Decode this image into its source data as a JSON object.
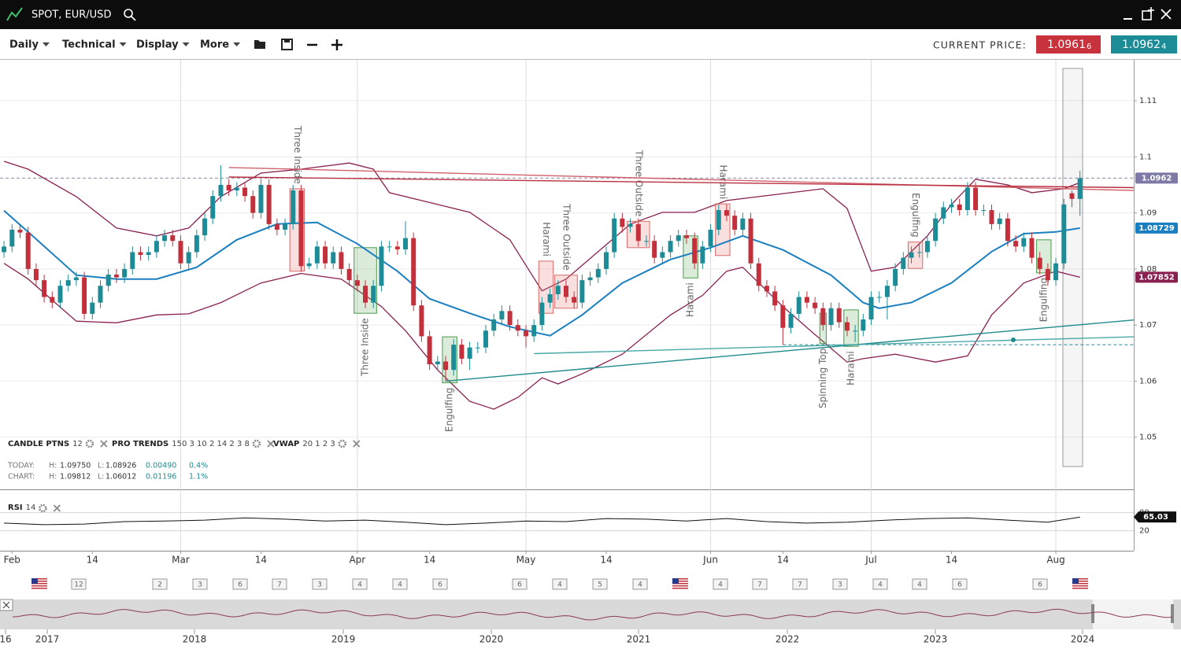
{
  "header": {
    "title": "SPOT, EUR/USD"
  },
  "toolbar": {
    "menus": [
      "Daily",
      "Technical",
      "Display",
      "More"
    ],
    "current_price_label": "CURRENT PRICE:",
    "bid": "1.0961",
    "bid_pip": "6",
    "ask": "1.0962",
    "ask_pip": "4"
  },
  "chart": {
    "type": "candlestick",
    "xlim": [
      -0.5,
      140.7
    ],
    "ylim": [
      1.0407,
      1.1173
    ],
    "yticks": [
      1.05,
      1.06,
      1.07,
      1.08,
      1.09,
      1.1,
      1.11
    ],
    "xticks": [
      {
        "value": 1,
        "label": "Feb"
      },
      {
        "value": 11,
        "label": "14"
      },
      {
        "value": 22,
        "label": "Mar"
      },
      {
        "value": 32,
        "label": "14"
      },
      {
        "value": 44,
        "label": "Apr"
      },
      {
        "value": 53,
        "label": "14"
      },
      {
        "value": 65,
        "label": "May"
      },
      {
        "value": 75,
        "label": "14"
      },
      {
        "value": 88,
        "label": "Jun"
      },
      {
        "value": 97,
        "label": "14"
      },
      {
        "value": 108,
        "label": "Jul"
      },
      {
        "value": 118,
        "label": "14"
      },
      {
        "value": 131,
        "label": "Aug"
      }
    ],
    "xgrid": [
      22,
      44,
      65,
      88,
      108,
      131
    ],
    "colors": {
      "up": "#1e8c96",
      "down": "#c3303c",
      "last_price": "#7d7aa6"
    },
    "candles": [
      [
        1.083,
        1.085,
        1.082,
        1.084
      ],
      [
        1.084,
        1.088,
        1.083,
        1.087
      ],
      [
        1.087,
        1.088,
        1.0855,
        1.0865
      ],
      [
        1.0865,
        1.0875,
        1.079,
        1.08
      ],
      [
        1.08,
        1.081,
        1.077,
        1.078
      ],
      [
        1.078,
        1.079,
        1.074,
        1.075
      ],
      [
        1.075,
        1.076,
        1.073,
        1.074
      ],
      [
        1.074,
        1.078,
        1.073,
        1.077
      ],
      [
        1.077,
        1.079,
        1.076,
        1.078
      ],
      [
        1.078,
        1.0795,
        1.077,
        1.0785
      ],
      [
        1.0785,
        1.0795,
        1.071,
        1.072
      ],
      [
        1.072,
        1.075,
        1.071,
        1.074
      ],
      [
        1.074,
        1.078,
        1.073,
        1.077
      ],
      [
        1.077,
        1.08,
        1.076,
        1.079
      ],
      [
        1.079,
        1.08,
        1.0775,
        1.0785
      ],
      [
        1.0785,
        1.081,
        1.0775,
        1.08
      ],
      [
        1.08,
        1.084,
        1.079,
        1.083
      ],
      [
        1.083,
        1.084,
        1.0815,
        1.0825
      ],
      [
        1.0825,
        1.084,
        1.0815,
        1.083
      ],
      [
        1.083,
        1.086,
        1.082,
        1.085
      ],
      [
        1.085,
        1.087,
        1.084,
        1.086
      ],
      [
        1.086,
        1.087,
        1.084,
        1.085
      ],
      [
        1.085,
        1.086,
        1.08,
        1.081
      ],
      [
        1.081,
        1.084,
        1.08,
        1.083
      ],
      [
        1.083,
        1.087,
        1.082,
        1.086
      ],
      [
        1.086,
        1.09,
        1.085,
        1.089
      ],
      [
        1.089,
        1.094,
        1.088,
        1.093
      ],
      [
        1.093,
        1.0985,
        1.092,
        1.095
      ],
      [
        1.095,
        1.096,
        1.093,
        1.094
      ],
      [
        1.094,
        1.0955,
        1.093,
        1.0945
      ],
      [
        1.0945,
        1.0955,
        1.092,
        1.093
      ],
      [
        1.093,
        1.094,
        1.089,
        1.09
      ],
      [
        1.09,
        1.096,
        1.089,
        1.095
      ],
      [
        1.095,
        1.096,
        1.087,
        1.088
      ],
      [
        1.088,
        1.089,
        1.086,
        1.087
      ],
      [
        1.087,
        1.089,
        1.086,
        1.088
      ],
      [
        1.088,
        1.095,
        1.087,
        1.094
      ],
      [
        1.094,
        1.095,
        1.0795,
        1.0805
      ],
      [
        1.0805,
        1.082,
        1.08,
        1.081
      ],
      [
        1.081,
        1.085,
        1.08,
        1.084
      ],
      [
        1.084,
        1.085,
        1.08,
        1.081
      ],
      [
        1.081,
        1.084,
        1.08,
        1.083
      ],
      [
        1.083,
        1.084,
        1.079,
        1.08
      ],
      [
        1.08,
        1.081,
        1.077,
        1.078
      ],
      [
        1.078,
        1.079,
        1.076,
        1.077
      ],
      [
        1.077,
        1.078,
        1.073,
        1.074
      ],
      [
        1.074,
        1.078,
        1.073,
        1.077
      ],
      [
        1.077,
        1.085,
        1.076,
        1.084
      ],
      [
        1.084,
        1.085,
        1.083,
        1.084
      ],
      [
        1.084,
        1.085,
        1.0825,
        1.0835
      ],
      [
        1.0835,
        1.0885,
        1.0825,
        1.0855
      ],
      [
        1.0855,
        1.0865,
        1.0725,
        1.0735
      ],
      [
        1.0735,
        1.0745,
        1.067,
        1.068
      ],
      [
        1.068,
        1.069,
        1.062,
        1.063
      ],
      [
        1.063,
        1.0645,
        1.062,
        1.0635
      ],
      [
        1.0635,
        1.0645,
        1.06,
        1.062
      ],
      [
        1.062,
        1.0675,
        1.061,
        1.0665
      ],
      [
        1.0665,
        1.0675,
        1.063,
        1.064
      ],
      [
        1.064,
        1.067,
        1.062,
        1.066
      ],
      [
        1.066,
        1.067,
        1.065,
        1.066
      ],
      [
        1.066,
        1.07,
        1.065,
        1.069
      ],
      [
        1.069,
        1.072,
        1.068,
        1.071
      ],
      [
        1.071,
        1.0735,
        1.07,
        1.0725
      ],
      [
        1.0725,
        1.0735,
        1.069,
        1.07
      ],
      [
        1.07,
        1.071,
        1.068,
        1.069
      ],
      [
        1.069,
        1.07,
        1.066,
        1.068
      ],
      [
        1.068,
        1.071,
        1.067,
        1.07
      ],
      [
        1.07,
        1.075,
        1.069,
        1.074
      ],
      [
        1.074,
        1.0765,
        1.073,
        1.0755
      ],
      [
        1.0755,
        1.078,
        1.0745,
        1.077
      ],
      [
        1.077,
        1.078,
        1.074,
        1.075
      ],
      [
        1.075,
        1.076,
        1.073,
        1.074
      ],
      [
        1.074,
        1.079,
        1.073,
        1.078
      ],
      [
        1.078,
        1.0795,
        1.077,
        1.0785
      ],
      [
        1.0785,
        1.081,
        1.0775,
        1.08
      ],
      [
        1.08,
        1.084,
        1.079,
        1.083
      ],
      [
        1.083,
        1.09,
        1.082,
        1.089
      ],
      [
        1.089,
        1.09,
        1.0865,
        1.0875
      ],
      [
        1.0875,
        1.089,
        1.0865,
        1.088
      ],
      [
        1.088,
        1.089,
        1.084,
        1.085
      ],
      [
        1.085,
        1.086,
        1.084,
        1.085
      ],
      [
        1.085,
        1.086,
        1.081,
        1.082
      ],
      [
        1.082,
        1.084,
        1.081,
        1.083
      ],
      [
        1.083,
        1.086,
        1.082,
        1.085
      ],
      [
        1.085,
        1.087,
        1.084,
        1.086
      ],
      [
        1.086,
        1.087,
        1.0845,
        1.0855
      ],
      [
        1.0855,
        1.0865,
        1.08,
        1.081
      ],
      [
        1.081,
        1.085,
        1.08,
        1.084
      ],
      [
        1.084,
        1.088,
        1.083,
        1.087
      ],
      [
        1.087,
        1.0915,
        1.086,
        1.0905
      ],
      [
        1.0905,
        1.0915,
        1.0885,
        1.0895
      ],
      [
        1.0895,
        1.0905,
        1.086,
        1.087
      ],
      [
        1.087,
        1.09,
        1.086,
        1.089
      ],
      [
        1.089,
        1.09,
        1.08,
        1.081
      ],
      [
        1.081,
        1.082,
        1.076,
        1.077
      ],
      [
        1.077,
        1.078,
        1.075,
        1.076
      ],
      [
        1.076,
        1.077,
        1.0725,
        1.0735
      ],
      [
        1.0735,
        1.0745,
        1.0665,
        1.0695
      ],
      [
        1.0695,
        1.073,
        1.0685,
        1.072
      ],
      [
        1.072,
        1.076,
        1.071,
        1.075
      ],
      [
        1.075,
        1.076,
        1.073,
        1.074
      ],
      [
        1.074,
        1.075,
        1.072,
        1.073
      ],
      [
        1.073,
        1.074,
        1.069,
        1.07
      ],
      [
        1.07,
        1.074,
        1.069,
        1.073
      ],
      [
        1.073,
        1.074,
        1.0695,
        1.0705
      ],
      [
        1.0705,
        1.0715,
        1.068,
        1.069
      ],
      [
        1.069,
        1.07,
        1.067,
        1.069
      ],
      [
        1.069,
        1.072,
        1.068,
        1.071
      ],
      [
        1.071,
        1.076,
        1.07,
        1.075
      ],
      [
        1.075,
        1.076,
        1.074,
        1.075
      ],
      [
        1.075,
        1.078,
        1.071,
        1.077
      ],
      [
        1.077,
        1.081,
        1.076,
        1.08
      ],
      [
        1.08,
        1.083,
        1.079,
        1.082
      ],
      [
        1.082,
        1.084,
        1.081,
        1.083
      ],
      [
        1.083,
        1.0845,
        1.082,
        1.083
      ],
      [
        1.083,
        1.086,
        1.082,
        1.085
      ],
      [
        1.085,
        1.09,
        1.084,
        1.089
      ],
      [
        1.089,
        1.092,
        1.088,
        1.091
      ],
      [
        1.091,
        1.0925,
        1.09,
        1.0915
      ],
      [
        1.0915,
        1.0925,
        1.0895,
        1.0905
      ],
      [
        1.0905,
        1.0955,
        1.0895,
        1.0945
      ],
      [
        1.0945,
        1.0955,
        1.0895,
        1.0905
      ],
      [
        1.0905,
        1.0915,
        1.0895,
        1.0905
      ],
      [
        1.0905,
        1.0915,
        1.087,
        1.088
      ],
      [
        1.088,
        1.09,
        1.087,
        1.089
      ],
      [
        1.089,
        1.09,
        1.084,
        1.085
      ],
      [
        1.085,
        1.086,
        1.083,
        1.084
      ],
      [
        1.084,
        1.0865,
        1.083,
        1.0855
      ],
      [
        1.0855,
        1.0865,
        1.081,
        1.082
      ],
      [
        1.082,
        1.083,
        1.079,
        1.08
      ],
      [
        1.08,
        1.081,
        1.077,
        1.078
      ],
      [
        1.078,
        1.082,
        1.077,
        1.081
      ],
      [
        1.081,
        1.0925,
        1.08,
        1.0915
      ],
      [
        1.0935,
        1.094,
        1.091,
        1.0925
      ],
      [
        1.0925,
        1.0975,
        1.0895,
        1.0962
      ]
    ],
    "middle": {
      "color": "#1a7fc0",
      "x": [
        0,
        3,
        9,
        14,
        19,
        24,
        29,
        34,
        39,
        44,
        49,
        53,
        58,
        63,
        68,
        72,
        77,
        83,
        88,
        92,
        97,
        103,
        107,
        109,
        113,
        118,
        123,
        127,
        131,
        134
      ],
      "values": [
        1.0904,
        1.0866,
        1.0789,
        1.0782,
        1.0782,
        1.0803,
        1.0852,
        1.088,
        1.0883,
        1.0845,
        1.0796,
        1.0747,
        1.0721,
        1.0697,
        1.0681,
        1.0718,
        1.0775,
        1.0817,
        1.0838,
        1.0859,
        1.0834,
        1.0789,
        1.074,
        1.073,
        1.074,
        1.0775,
        1.0831,
        1.0863,
        1.0866,
        1.08729
      ]
    },
    "upper": {
      "color": "#8a2050",
      "x": [
        0,
        3,
        9,
        14,
        19,
        23,
        27,
        32,
        37,
        43,
        46,
        48,
        52,
        58,
        63,
        67,
        70,
        74,
        78,
        82,
        86,
        90,
        94,
        98,
        102,
        105,
        108,
        111,
        115,
        118,
        121,
        125,
        128,
        132,
        134
      ],
      "values": [
        1.0992,
        1.0978,
        1.0929,
        1.0873,
        1.0859,
        1.0873,
        1.0929,
        1.0971,
        1.0978,
        1.0989,
        1.0978,
        1.0936,
        1.0922,
        1.0901,
        1.0852,
        1.0761,
        1.0782,
        1.0831,
        1.088,
        1.0901,
        1.0901,
        1.0922,
        1.0929,
        1.0936,
        1.0943,
        1.0908,
        1.0796,
        1.0803,
        1.0859,
        1.0915,
        1.096,
        1.095,
        1.0936,
        1.0943,
        1.0954
      ]
    },
    "lower": {
      "color": "#8a2050",
      "x": [
        0,
        3,
        9,
        14,
        19,
        23,
        27,
        32,
        37,
        42,
        47,
        50,
        54,
        58,
        61,
        64,
        67,
        69,
        72,
        77,
        83,
        87,
        90,
        92,
        97,
        101,
        105,
        107,
        111,
        116,
        120,
        123,
        127,
        131,
        134
      ],
      "values": [
        1.081,
        1.0782,
        1.0707,
        1.0704,
        1.0718,
        1.072,
        1.074,
        1.0775,
        1.0792,
        1.0782,
        1.0733,
        1.069,
        1.062,
        1.0564,
        1.055,
        1.0571,
        1.0606,
        1.0595,
        1.0613,
        1.0648,
        1.0718,
        1.0753,
        1.0796,
        1.0803,
        1.0733,
        1.0683,
        1.0634,
        1.064,
        1.0648,
        1.0634,
        1.0645,
        1.0718,
        1.0775,
        1.0796,
        1.07852
      ]
    },
    "trend_lines": [
      {
        "color": "#d0606a",
        "x": [
          28,
          140.7
        ],
        "values": [
          1.0981,
          1.094
        ]
      },
      {
        "color": "#b83040",
        "x": [
          28,
          140.7
        ],
        "values": [
          1.0964,
          1.0945
        ]
      },
      {
        "color": "#1e8a8a",
        "x": [
          55,
          140.7
        ],
        "values": [
          1.06,
          1.0709
        ]
      },
      {
        "color": "#4aa8a8",
        "x": [
          66,
          140.7
        ],
        "values": [
          1.0649,
          1.0679
        ]
      }
    ],
    "levels": [
      {
        "value": 1.0962,
        "from": -0.5,
        "color": "#8a8aa8"
      },
      {
        "value": 1.0665,
        "from": 97,
        "color": "#2a8a94"
      }
    ],
    "patterns": [
      {
        "label": "Three Inside",
        "start": 36,
        "end": 37,
        "high": 1.0943,
        "low": 1.0796,
        "bullish": false,
        "side": "above"
      },
      {
        "label": "Three Inside",
        "start": 44,
        "end": 46,
        "high": 1.0838,
        "low": 1.0721,
        "bullish": true,
        "side": "below"
      },
      {
        "label": "Engulfing",
        "start": 55,
        "end": 56,
        "high": 1.0679,
        "low": 1.0597,
        "bullish": true,
        "side": "below"
      },
      {
        "label": "Harami",
        "start": 67,
        "end": 68,
        "high": 1.0814,
        "low": 1.0721,
        "bullish": false,
        "side": "above"
      },
      {
        "label": "Three Outside",
        "start": 69,
        "end": 71,
        "high": 1.0789,
        "low": 1.073,
        "bullish": false,
        "side": "above"
      },
      {
        "label": "Three Outside",
        "start": 78,
        "end": 80,
        "high": 1.0885,
        "low": 1.0838,
        "bullish": false,
        "side": "above"
      },
      {
        "label": "Harami",
        "start": 85,
        "end": 86,
        "high": 1.0859,
        "low": 1.0784,
        "bullish": true,
        "side": "below"
      },
      {
        "label": "Harami",
        "start": 89,
        "end": 90,
        "high": 1.0916,
        "low": 1.0824,
        "bullish": false,
        "side": "above"
      },
      {
        "label": "Spinning Top",
        "start": 102,
        "end": 102,
        "high": 1.0721,
        "low": 1.0667,
        "bullish": true,
        "side": "below"
      },
      {
        "label": "Harami",
        "start": 105,
        "end": 106,
        "high": 1.0727,
        "low": 1.0662,
        "bullish": true,
        "side": "below"
      },
      {
        "label": "Engulfing",
        "start": 113,
        "end": 114,
        "high": 1.0848,
        "low": 1.0801,
        "bullish": false,
        "side": "above"
      },
      {
        "label": "Engulfing",
        "start": 129,
        "end": 130,
        "high": 1.0852,
        "low": 1.0793,
        "bullish": true,
        "side": "below"
      }
    ]
  },
  "indicators": [
    {
      "name": "CANDLE PTNS",
      "params": "12"
    },
    {
      "name": "PRO TRENDS",
      "params": "150 3 10 2 14 2 3 8"
    },
    {
      "name": "VWAP",
      "params": "20 1 2 3"
    }
  ],
  "stats": [
    [
      "TODAY:",
      "H:",
      "1.09750",
      "L:",
      "1.08926",
      "0.00490",
      "0.4%"
    ],
    [
      "CHART:",
      "H:",
      "1.09812",
      "L:",
      "1.06012",
      "0.01196",
      "1.1%"
    ]
  ],
  "rsi": {
    "name": "RSI",
    "params": "14",
    "color": "#111111",
    "ylim": [
      -40,
      140
    ],
    "yticks": [
      20,
      80
    ],
    "x": [
      0,
      5,
      10,
      15,
      20,
      25,
      30,
      35,
      40,
      45,
      50,
      55,
      60,
      65,
      70,
      75,
      80,
      85,
      90,
      95,
      100,
      105,
      110,
      115,
      120,
      125,
      130,
      134
    ],
    "values": [
      45,
      40,
      42,
      50,
      52,
      55,
      62,
      58,
      52,
      55,
      48,
      40,
      45,
      52,
      50,
      60,
      58,
      52,
      60,
      50,
      45,
      48,
      55,
      60,
      62,
      55,
      48,
      65.03
    ]
  },
  "events": [
    "12",
    "2",
    "3",
    "6",
    "7",
    "3",
    "4",
    "4",
    "6",
    "6",
    "4",
    "5",
    "4",
    "4",
    "7",
    "7",
    "3",
    "4",
    "4",
    "6",
    "6"
  ],
  "navigator": {
    "years": [
      "16",
      "2017",
      "2018",
      "2019",
      "2020",
      "2021",
      "2022",
      "2023",
      "2024"
    ]
  }
}
